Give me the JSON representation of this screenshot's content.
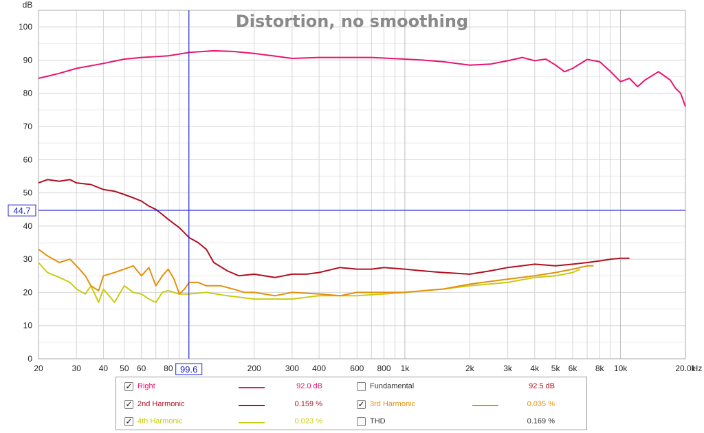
{
  "chart_data": {
    "type": "line",
    "title": "Distortion, no smoothing",
    "ylabel": "dB",
    "xunit": "Hz",
    "x_scale": "log",
    "xlim": [
      20,
      20000
    ],
    "ylim": [
      0,
      105
    ],
    "grid": true,
    "y_ticks": [
      "0",
      "10",
      "20",
      "30",
      "40",
      "50",
      "60",
      "70",
      "80",
      "90",
      "100"
    ],
    "y_tick_values": [
      0,
      10,
      20,
      30,
      40,
      50,
      60,
      70,
      80,
      90,
      100
    ],
    "x_ticks": [
      "20",
      "30",
      "40",
      "50",
      "60",
      "80",
      "200",
      "300",
      "400",
      "600",
      "800",
      "1k",
      "2k",
      "3k",
      "4k",
      "5k",
      "6k",
      "8k",
      "10k",
      "20.0k"
    ],
    "x_tick_values": [
      20,
      30,
      40,
      50,
      60,
      80,
      200,
      300,
      400,
      600,
      800,
      1000,
      2000,
      3000,
      4000,
      5000,
      6000,
      8000,
      10000,
      20000
    ],
    "cursor": {
      "x": 99.6,
      "y": 44.7,
      "x_label": "99.6",
      "y_label": "44.7",
      "color": "#1f1fd0"
    },
    "series": [
      {
        "name": "Right",
        "color": "#e8136e",
        "x": [
          20,
          25,
          30,
          40,
          50,
          60,
          80,
          100,
          130,
          160,
          200,
          250,
          300,
          400,
          500,
          600,
          700,
          800,
          1000,
          1200,
          1500,
          2000,
          2500,
          3000,
          3500,
          4000,
          4500,
          5000,
          5500,
          6000,
          7000,
          8000,
          9000,
          10000,
          11000,
          12000,
          13000,
          15000,
          17000,
          18000,
          19000,
          20000
        ],
        "y": [
          84.5,
          86,
          87.5,
          89,
          90.3,
          90.8,
          91.3,
          92.3,
          92.8,
          92.6,
          92,
          91.2,
          90.5,
          90.8,
          90.8,
          90.8,
          90.8,
          90.6,
          90.3,
          90,
          89.5,
          88.5,
          88.8,
          89.8,
          90.8,
          89.8,
          90.3,
          88.5,
          86.5,
          87.5,
          90.2,
          89.5,
          86.5,
          83.5,
          84.5,
          82,
          84,
          86.5,
          84,
          81.5,
          80,
          76
        ]
      },
      {
        "name": "2nd Harmonic",
        "color": "#b01020",
        "x": [
          20,
          22,
          25,
          28,
          30,
          35,
          40,
          45,
          50,
          55,
          60,
          65,
          70,
          75,
          80,
          90,
          100,
          110,
          120,
          130,
          150,
          170,
          200,
          250,
          300,
          350,
          400,
          500,
          600,
          700,
          800,
          1000,
          1200,
          1500,
          2000,
          2500,
          3000,
          4000,
          5000,
          6000,
          7000,
          8000,
          9000,
          10000,
          11000
        ],
        "y": [
          53,
          54,
          53.5,
          54,
          53,
          52.5,
          51,
          50.5,
          49.5,
          48.5,
          47.5,
          46,
          45,
          43.5,
          42,
          39.5,
          36.5,
          35,
          33,
          29,
          26.5,
          25,
          25.5,
          24.5,
          25.5,
          25.5,
          26,
          27.5,
          27,
          27,
          27.5,
          27,
          26.5,
          26,
          25.5,
          26.5,
          27.5,
          28.5,
          28,
          28.5,
          29,
          29.5,
          30,
          30.3,
          30.3
        ]
      },
      {
        "name": "3rd Harmonic",
        "color": "#e4900c",
        "x": [
          20,
          22,
          25,
          28,
          30,
          33,
          35,
          38,
          40,
          45,
          50,
          55,
          60,
          65,
          70,
          75,
          80,
          85,
          90,
          95,
          100,
          110,
          120,
          140,
          160,
          180,
          200,
          250,
          300,
          400,
          500,
          600,
          800,
          1000,
          1500,
          2000,
          3000,
          4000,
          5000,
          6000,
          7000,
          7500
        ],
        "y": [
          33,
          31,
          29,
          30,
          28,
          25,
          22,
          20.5,
          25,
          26,
          27,
          28,
          25,
          27.5,
          22,
          25,
          27,
          24,
          19.5,
          21,
          23,
          23,
          22,
          22,
          21,
          20,
          20,
          19,
          20,
          19.5,
          19,
          20,
          20,
          20,
          21,
          22.5,
          24,
          25,
          26,
          27,
          28,
          28
        ]
      },
      {
        "name": "4th Harmonic",
        "color": "#c8cc10",
        "x": [
          20,
          22,
          25,
          28,
          30,
          33,
          35,
          38,
          40,
          45,
          50,
          55,
          60,
          65,
          70,
          75,
          80,
          90,
          100,
          120,
          150,
          200,
          250,
          300,
          400,
          500,
          600,
          800,
          1000,
          1500,
          2000,
          3000,
          4000,
          5000,
          6000,
          6500
        ],
        "y": [
          29,
          26,
          24.5,
          23,
          21,
          19.5,
          22,
          17,
          21,
          17,
          22,
          20,
          19.5,
          18,
          17,
          20,
          20.5,
          19.5,
          19.5,
          20,
          19,
          18,
          18,
          18,
          19,
          19,
          19,
          19.5,
          20,
          21,
          22,
          23,
          24.5,
          25,
          26,
          27
        ]
      }
    ]
  },
  "legend": {
    "rows": [
      [
        {
          "label": "Right",
          "checked": true,
          "color": "#e8136e",
          "value": "92.0 dB",
          "has_line": true
        },
        {
          "label": "Fundamental",
          "checked": false,
          "color": "#333333",
          "value": "92.5 dB",
          "value_color": "#b01020",
          "has_line": false
        }
      ],
      [
        {
          "label": "2nd Harmonic",
          "checked": true,
          "color": "#b01020",
          "value": "0.159 %",
          "has_line": true
        },
        {
          "label": "3rd Harmonic",
          "checked": true,
          "color": "#e4900c",
          "value": "0.035 %",
          "has_line": true
        }
      ],
      [
        {
          "label": "4th Harmonic",
          "checked": true,
          "color": "#c8cc10",
          "value": "0.023 %",
          "has_line": true
        },
        {
          "label": "THD",
          "checked": false,
          "color": "#333333",
          "value": "0.169 %",
          "has_line": false
        }
      ]
    ],
    "checkmark": "✓"
  }
}
